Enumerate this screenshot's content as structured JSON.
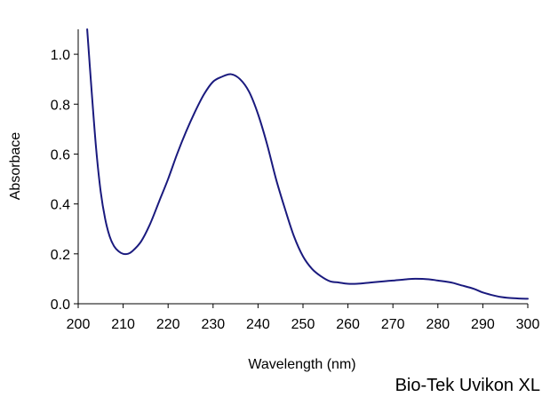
{
  "chart_data": {
    "type": "line",
    "title": "",
    "xlabel": "Wavelength (nm)",
    "ylabel": "Absorbace",
    "xlim": [
      200,
      300
    ],
    "ylim": [
      0,
      1.1
    ],
    "xticks": [
      "200",
      "210",
      "220",
      "230",
      "240",
      "250",
      "260",
      "270",
      "280",
      "290",
      "300"
    ],
    "xtick_values": [
      200,
      210,
      220,
      230,
      240,
      250,
      260,
      270,
      280,
      290,
      300
    ],
    "yticks": [
      "0.0",
      "0.2",
      "0.4",
      "0.6",
      "0.8",
      "1.0"
    ],
    "ytick_values": [
      0,
      0.2,
      0.4,
      0.6,
      0.8,
      1.0
    ],
    "grid": false,
    "legend": "none",
    "series": [
      {
        "color": "#1a1a7e",
        "x": [
          202,
          203,
          204,
          205,
          206,
          207,
          208,
          209,
          210,
          211,
          212,
          214,
          216,
          218,
          220,
          222,
          224,
          226,
          228,
          230,
          232,
          234,
          236,
          238,
          240,
          242,
          244,
          246,
          248,
          250,
          252,
          254,
          256,
          258,
          260,
          262,
          265,
          268,
          270,
          273,
          275,
          278,
          280,
          283,
          285,
          288,
          290,
          292,
          294,
          296,
          298,
          300
        ],
        "y": [
          1.1,
          0.85,
          0.62,
          0.45,
          0.34,
          0.27,
          0.23,
          0.21,
          0.2,
          0.2,
          0.21,
          0.25,
          0.32,
          0.41,
          0.5,
          0.6,
          0.69,
          0.77,
          0.84,
          0.89,
          0.91,
          0.92,
          0.9,
          0.85,
          0.76,
          0.64,
          0.5,
          0.38,
          0.27,
          0.19,
          0.14,
          0.11,
          0.09,
          0.085,
          0.08,
          0.08,
          0.085,
          0.09,
          0.093,
          0.098,
          0.1,
          0.098,
          0.093,
          0.085,
          0.075,
          0.06,
          0.045,
          0.035,
          0.027,
          0.023,
          0.021,
          0.02
        ]
      }
    ]
  },
  "annotation": "Bio-Tek Uvikon XL"
}
